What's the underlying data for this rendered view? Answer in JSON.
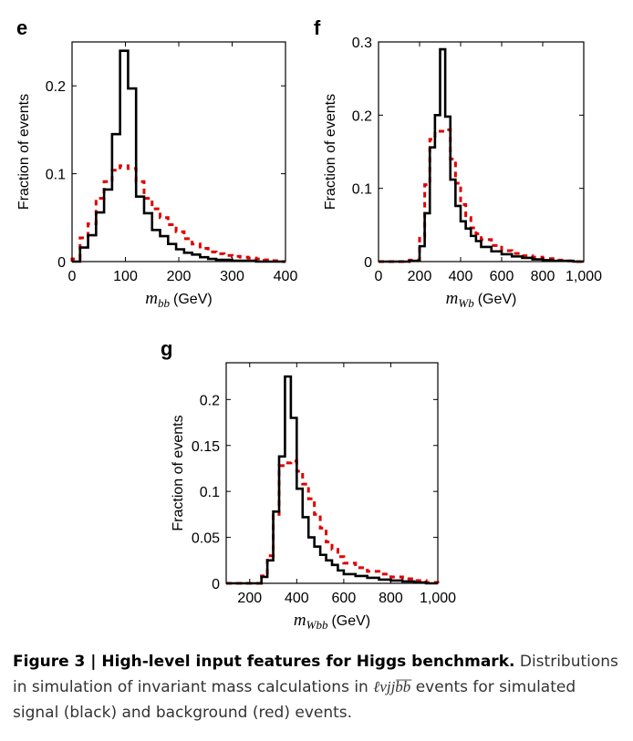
{
  "chart_data": [
    {
      "panel": "e",
      "type": "histogram",
      "xlabel_var": "m",
      "xlabel_sub": "bb",
      "xlabel_unit": "(GeV)",
      "ylabel": "Fraction of events",
      "xlim": [
        0,
        400
      ],
      "ylim": [
        0,
        0.25
      ],
      "xticks": [
        0,
        100,
        200,
        300,
        400
      ],
      "xtick_labels": [
        "0",
        "100",
        "200",
        "300",
        "400"
      ],
      "yticks": [
        0,
        0.1,
        0.2
      ],
      "ytick_labels": [
        "0",
        "0.1",
        "0.2"
      ],
      "bin_edges": [
        0,
        15,
        30,
        45,
        60,
        75,
        90,
        105,
        120,
        135,
        150,
        165,
        180,
        195,
        210,
        225,
        240,
        255,
        270,
        285,
        300,
        315,
        330,
        345,
        360,
        375,
        390,
        400
      ],
      "series": [
        {
          "name": "signal",
          "color": "#000000",
          "style": "solid",
          "values": [
            0.0,
            0.016,
            0.03,
            0.056,
            0.082,
            0.145,
            0.24,
            0.197,
            0.074,
            0.055,
            0.036,
            0.029,
            0.02,
            0.014,
            0.01,
            0.008,
            0.005,
            0.003,
            0.002,
            0.002,
            0.001,
            0.001,
            0.001,
            0.0,
            0.0,
            0.0,
            0.0
          ]
        },
        {
          "name": "background",
          "color": "#e00000",
          "style": "dashed",
          "values": [
            0.003,
            0.027,
            0.043,
            0.072,
            0.091,
            0.104,
            0.109,
            0.106,
            0.091,
            0.072,
            0.06,
            0.05,
            0.042,
            0.034,
            0.026,
            0.02,
            0.015,
            0.011,
            0.009,
            0.007,
            0.006,
            0.005,
            0.004,
            0.003,
            0.002,
            0.001,
            0.0
          ]
        }
      ]
    },
    {
      "panel": "f",
      "type": "histogram",
      "xlabel_var": "m",
      "xlabel_sub": "Wb",
      "xlabel_unit": "(GeV)",
      "ylabel": "Fraction of events",
      "xlim": [
        0,
        1000
      ],
      "ylim": [
        0,
        0.3
      ],
      "xticks": [
        0,
        200,
        400,
        600,
        800,
        1000
      ],
      "xtick_labels": [
        "0",
        "200",
        "400",
        "600",
        "800",
        "1,000"
      ],
      "yticks": [
        0,
        0.1,
        0.2,
        0.3
      ],
      "ytick_labels": [
        "0",
        "0.1",
        "0.2",
        "0.3"
      ],
      "bin_edges": [
        0,
        150,
        200,
        225,
        250,
        275,
        300,
        325,
        350,
        375,
        400,
        425,
        450,
        475,
        500,
        550,
        600,
        650,
        700,
        750,
        800,
        850,
        900,
        950,
        1000
      ],
      "series": [
        {
          "name": "signal",
          "color": "#000000",
          "style": "solid",
          "values": [
            0.0,
            0.001,
            0.021,
            0.066,
            0.156,
            0.2,
            0.29,
            0.198,
            0.112,
            0.076,
            0.055,
            0.045,
            0.035,
            0.028,
            0.02,
            0.014,
            0.01,
            0.007,
            0.005,
            0.003,
            0.002,
            0.001,
            0.001,
            0.0
          ]
        },
        {
          "name": "background",
          "color": "#e00000",
          "style": "dashed",
          "values": [
            0.0,
            0.002,
            0.034,
            0.105,
            0.167,
            0.175,
            0.178,
            0.18,
            0.14,
            0.107,
            0.078,
            0.06,
            0.046,
            0.038,
            0.03,
            0.022,
            0.015,
            0.011,
            0.008,
            0.006,
            0.004,
            0.002,
            0.001,
            0.0
          ]
        }
      ]
    },
    {
      "panel": "g",
      "type": "histogram",
      "xlabel_var": "m",
      "xlabel_sub": "Wbb",
      "xlabel_unit": "(GeV)",
      "ylabel": "Fraction of events",
      "xlim": [
        100,
        1000
      ],
      "ylim": [
        0,
        0.24
      ],
      "xticks": [
        200,
        400,
        600,
        800,
        1000
      ],
      "xtick_labels": [
        "200",
        "400",
        "600",
        "800",
        "1,000"
      ],
      "yticks": [
        0,
        0.05,
        0.1,
        0.15,
        0.2
      ],
      "ytick_labels": [
        "0",
        "0.05",
        "0.1",
        "0.15",
        "0.2"
      ],
      "bin_edges": [
        100,
        250,
        275,
        300,
        325,
        350,
        375,
        400,
        425,
        450,
        475,
        500,
        525,
        550,
        575,
        600,
        650,
        700,
        750,
        800,
        850,
        900,
        950,
        1000
      ],
      "series": [
        {
          "name": "signal",
          "color": "#000000",
          "style": "solid",
          "values": [
            0.0,
            0.007,
            0.025,
            0.078,
            0.138,
            0.225,
            0.18,
            0.103,
            0.072,
            0.05,
            0.04,
            0.031,
            0.025,
            0.02,
            0.014,
            0.01,
            0.008,
            0.006,
            0.004,
            0.003,
            0.002,
            0.001,
            0.0
          ]
        },
        {
          "name": "background",
          "color": "#e00000",
          "style": "dashed",
          "values": [
            0.0,
            0.008,
            0.03,
            0.075,
            0.128,
            0.131,
            0.133,
            0.122,
            0.108,
            0.092,
            0.075,
            0.06,
            0.045,
            0.037,
            0.029,
            0.022,
            0.017,
            0.013,
            0.01,
            0.007,
            0.005,
            0.003,
            0.001
          ]
        }
      ]
    }
  ],
  "caption": {
    "title": "Figure 3 | High-level input features for Higgs benchmark.",
    "text_before": " Distributions in simulation of invariant mass calculations in ",
    "math": "ℓνjjb̅b̅",
    "text_after": " events for simulated signal (black) and background (red) events."
  }
}
